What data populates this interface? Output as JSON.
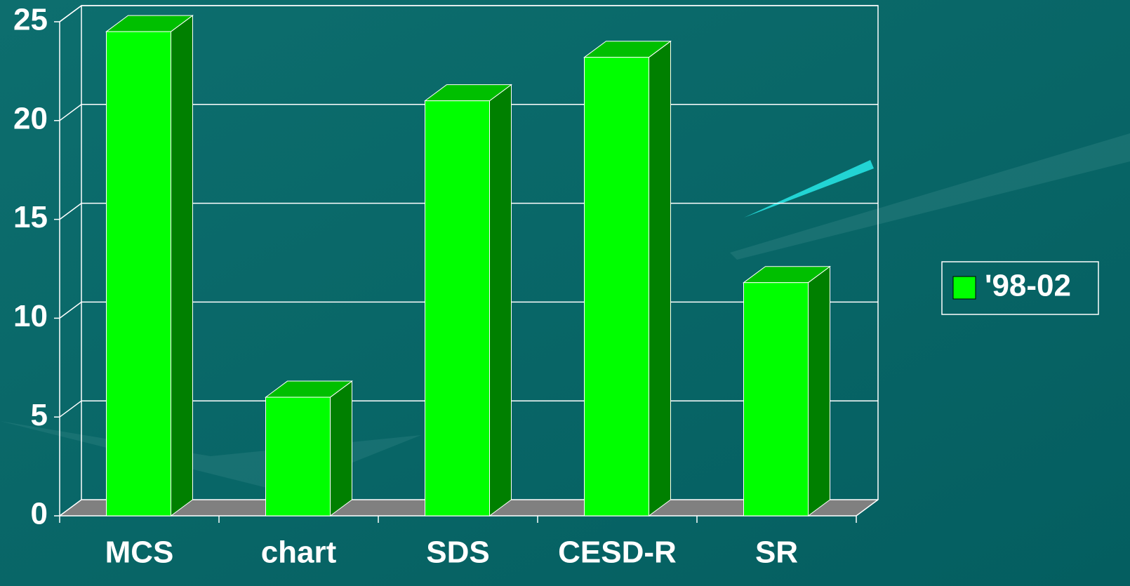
{
  "chart_data": {
    "type": "bar3d",
    "categories": [
      "MCS",
      "chart",
      "SDS",
      "CESD-R",
      "SR"
    ],
    "series": [
      {
        "name": "'98-02",
        "color": "#00ff00",
        "values": [
          24.5,
          6,
          21,
          23.2,
          11.8
        ]
      }
    ],
    "ylim": [
      0,
      25
    ],
    "yticks": [
      0,
      5,
      10,
      15,
      20,
      25
    ],
    "grid": true,
    "legend": "right"
  }
}
